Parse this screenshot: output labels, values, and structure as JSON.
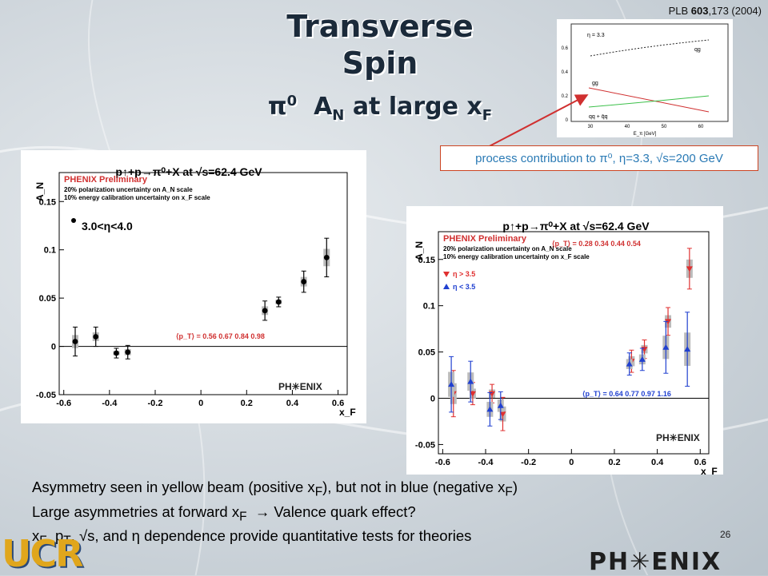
{
  "slide": {
    "title": "Transverse Spin",
    "subtitle_pi": "π",
    "subtitle_pi_sup": "0",
    "subtitle_a": "A",
    "subtitle_a_sub": "N",
    "subtitle_rest": "at large x",
    "subtitle_rest_sub": "F",
    "reference_pre": "PLB ",
    "reference_vol": "603",
    "reference_post": ",173 (2004)",
    "process_label": "process contribution to π⁰, η=3.3, √s=200 GeV",
    "page_number": "26",
    "bullets": [
      "Asymmetry seen in yellow beam (positive x_F), but not in blue (negative x_F)",
      "Large asymmetries at forward x_F  → Valence quark effect?",
      "x_F, p_T, √s, and η dependence provide quantitative tests for theories"
    ],
    "logos": {
      "ucr": "UCR",
      "phenix": "PH✳ENIX"
    },
    "colors": {
      "title": "#1b2a3a",
      "label_text": "#2a7ab5",
      "arrow": "#d03030",
      "red": "#e03030",
      "blue": "#2040d0"
    }
  },
  "inset_plot": {
    "xlabel": "E_π [GeV]",
    "eta_label": "η = 3.3",
    "curve_labels": [
      "qg",
      "gg",
      "qq + q̄q"
    ],
    "xticks": [
      "30",
      "40",
      "50",
      "60"
    ],
    "yticks": [
      "0",
      "0.2",
      "0.4",
      "0.6"
    ]
  },
  "chart_data": [
    {
      "type": "scatter",
      "title": "p↑+p→π⁰+X at √s=62.4 GeV",
      "xlabel": "x_F",
      "ylabel": "A_N",
      "xlim": [
        -0.62,
        0.64
      ],
      "ylim": [
        -0.05,
        0.18
      ],
      "xticks": [
        -0.6,
        -0.4,
        -0.2,
        0,
        0.2,
        0.4,
        0.6
      ],
      "yticks": [
        -0.05,
        0,
        0.05,
        0.1,
        0.15
      ],
      "preliminary_text": "PHENIX Preliminary",
      "notes": [
        "20% polarization uncertainty on A_N scale",
        "10% energy calibration uncertainty on x_F scale"
      ],
      "eta_range": "3.0<η<4.0",
      "pt_label": "⟨p_T⟩ = 0.56 0.67   0.84   0.98",
      "series": [
        {
          "x": [
            -0.55,
            -0.46,
            -0.37,
            -0.32,
            0.28,
            0.34,
            0.45,
            0.55
          ],
          "y": [
            0.005,
            0.01,
            -0.007,
            -0.006,
            0.037,
            0.046,
            0.067,
            0.092
          ],
          "err": [
            0.015,
            0.01,
            0.005,
            0.007,
            0.01,
            0.005,
            0.011,
            0.02
          ],
          "color": "#000000"
        }
      ]
    },
    {
      "type": "scatter",
      "title": "p↑+p→π⁰+X at √s=62.4 GeV",
      "xlabel": "x_F",
      "ylabel": "A_N",
      "xlim": [
        -0.62,
        0.64
      ],
      "ylim": [
        -0.06,
        0.18
      ],
      "xticks": [
        -0.6,
        -0.4,
        -0.2,
        0,
        0.2,
        0.4,
        0.6
      ],
      "yticks": [
        -0.05,
        0,
        0.05,
        0.1,
        0.15
      ],
      "preliminary_text": "PHENIX Preliminary",
      "notes": [
        "20% polarization uncertainty on A_N scale",
        "10% energy calibration uncertainty on x_F scale"
      ],
      "pt_label_red": "⟨p_T⟩ = 0.28 0.34    0.44   0.54",
      "pt_label_blue": "⟨p_T⟩ = 0.64 0.77    0.97   1.16",
      "series": [
        {
          "name": "η > 3.5",
          "marker": "triangle-down",
          "color": "#e03030",
          "x": [
            -0.55,
            -0.46,
            -0.37,
            -0.32,
            0.28,
            0.34,
            0.45,
            0.55
          ],
          "y": [
            0.005,
            0.005,
            0.005,
            -0.017,
            0.04,
            0.053,
            0.083,
            0.14
          ],
          "err": [
            0.025,
            0.012,
            0.01,
            0.018,
            0.012,
            0.01,
            0.015,
            0.022
          ]
        },
        {
          "name": "η < 3.5",
          "marker": "triangle-up",
          "color": "#2040d0",
          "x": [
            -0.56,
            -0.47,
            -0.38,
            -0.33,
            0.27,
            0.33,
            0.44,
            0.54
          ],
          "y": [
            0.015,
            0.018,
            -0.012,
            -0.008,
            0.037,
            0.042,
            0.055,
            0.053
          ],
          "err": [
            0.03,
            0.022,
            0.018,
            0.015,
            0.012,
            0.012,
            0.028,
            0.04
          ]
        }
      ]
    }
  ]
}
